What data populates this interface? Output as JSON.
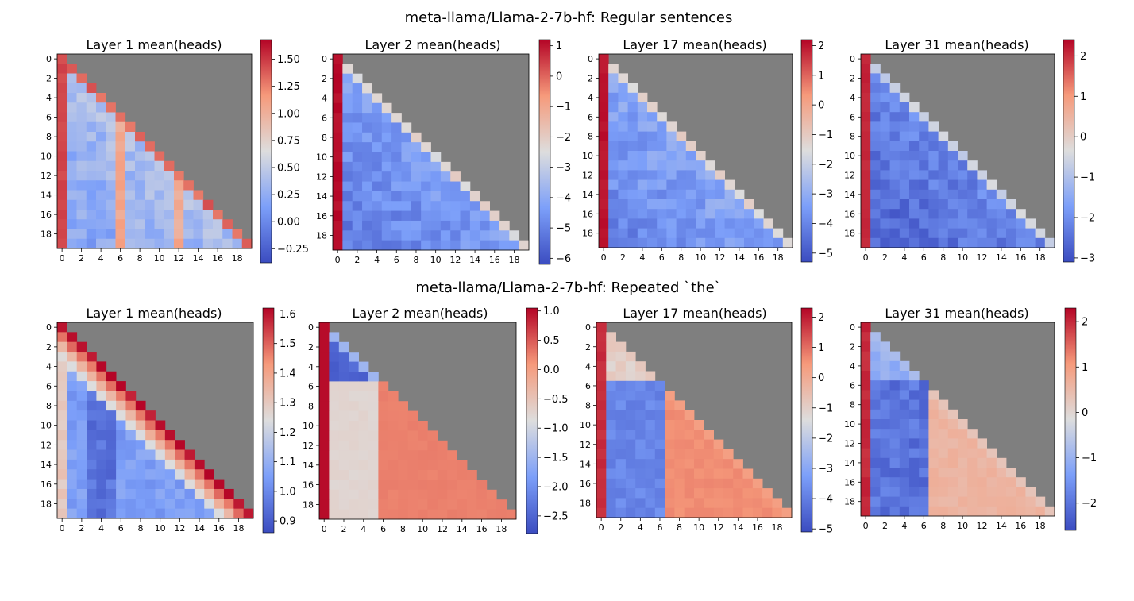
{
  "chart_data": [
    {
      "type": "heatmap",
      "group_title": "meta-llama/Llama-2-7b-hf: Regular sentences",
      "rows": 20,
      "cols": 20,
      "xticks": [
        "0",
        "2",
        "4",
        "6",
        "8",
        "10",
        "12",
        "14",
        "16",
        "18"
      ],
      "yticks": [
        "0",
        "2",
        "4",
        "6",
        "8",
        "10",
        "12",
        "14",
        "16",
        "18"
      ],
      "masked_color": "#7f7f7f",
      "colormap": "coolwarm",
      "panels": [
        {
          "title": "Layer 1 mean(heads)",
          "vmin": -0.38,
          "vmax": 1.68,
          "cbar_ticks": [
            -0.25,
            0,
            0.25,
            0.5,
            0.75,
            1.0,
            1.25,
            1.5
          ],
          "cbar_labels": [
            "−0.25",
            "0.00",
            "0.25",
            "0.50",
            "0.75",
            "1.00",
            "1.25",
            "1.50"
          ],
          "pattern": "first col strong red, diagonal red, scattered blue interior, red columns at 6 and 12",
          "first_col": 1.45,
          "diag": 1.35,
          "offdiag": 0.4,
          "stripe_cols": [
            6,
            12
          ],
          "stripe_val": 1.05
        },
        {
          "title": "Layer 2 mean(heads)",
          "vmin": -6.2,
          "vmax": 1.2,
          "cbar_ticks": [
            -6,
            -5,
            -4,
            -3,
            -2,
            -1,
            0,
            1
          ],
          "cbar_labels": [
            "−6",
            "−5",
            "−4",
            "−3",
            "−2",
            "−1",
            "0",
            "1"
          ],
          "first_col": 1.1,
          "diag": -2.3,
          "offdiag": -4.3
        },
        {
          "title": "Layer 17 mean(heads)",
          "vmin": -5.3,
          "vmax": 2.2,
          "cbar_ticks": [
            -5,
            -4,
            -3,
            -2,
            -1,
            0,
            1,
            2
          ],
          "cbar_labels": [
            "−5",
            "−4",
            "−3",
            "−2",
            "−1",
            "0",
            "1",
            "2"
          ],
          "first_col": 2.0,
          "diag": -1.3,
          "offdiag": -3.2
        },
        {
          "title": "Layer 31 mean(heads)",
          "vmin": -3.1,
          "vmax": 2.4,
          "cbar_ticks": [
            -3,
            -2,
            -1,
            0,
            1,
            2
          ],
          "cbar_labels": [
            "−3",
            "−2",
            "−1",
            "0",
            "1",
            "2"
          ],
          "first_col": 2.1,
          "diag": -0.6,
          "offdiag": -2.1
        }
      ]
    },
    {
      "type": "heatmap",
      "group_title": "meta-llama/Llama-2-7b-hf: Repeated `the`",
      "rows": 20,
      "cols": 20,
      "xticks": [
        "0",
        "2",
        "4",
        "6",
        "8",
        "10",
        "12",
        "14",
        "16",
        "18"
      ],
      "yticks": [
        "0",
        "2",
        "4",
        "6",
        "8",
        "10",
        "12",
        "14",
        "16",
        "18"
      ],
      "masked_color": "#7f7f7f",
      "colormap": "coolwarm",
      "panels": [
        {
          "title": "Layer 1 mean(heads)",
          "vmin": 0.86,
          "vmax": 1.62,
          "cbar_ticks": [
            0.9,
            1.0,
            1.1,
            1.2,
            1.3,
            1.4,
            1.5,
            1.6
          ],
          "cbar_labels": [
            "0.9",
            "1.0",
            "1.1",
            "1.2",
            "1.3",
            "1.4",
            "1.5",
            "1.6"
          ],
          "diag": 1.6,
          "offdiag": 1.05,
          "first_col": 1.3
        },
        {
          "title": "Layer 2 mean(heads)",
          "vmin": -2.8,
          "vmax": 1.05,
          "cbar_ticks": [
            -2.5,
            -2.0,
            -1.5,
            -1.0,
            -0.5,
            0.0,
            0.5,
            1.0
          ],
          "cbar_labels": [
            "−2.5",
            "−2.0",
            "−1.5",
            "−1.0",
            "−0.5",
            "0.0",
            "0.5",
            "1.0"
          ],
          "first_col": 1.0,
          "early_block": -2.5,
          "mid_cols": -0.75,
          "late_cols": 0.25
        },
        {
          "title": "Layer 17 mean(heads)",
          "vmin": -5.1,
          "vmax": 2.3,
          "cbar_ticks": [
            -5,
            -4,
            -3,
            -2,
            -1,
            0,
            1,
            2
          ],
          "cbar_labels": [
            "−5",
            "−4",
            "−3",
            "−2",
            "−1",
            "0",
            "1",
            "2"
          ],
          "first_col": 1.8,
          "block_cols": -3.8,
          "late_cols": 0.6
        },
        {
          "title": "Layer 31 mean(heads)",
          "vmin": -2.6,
          "vmax": 2.3,
          "cbar_ticks": [
            -2,
            -1,
            0,
            1,
            2
          ],
          "cbar_labels": [
            "−2",
            "−1",
            "0",
            "1",
            "2"
          ],
          "first_col": 2.0,
          "block_cols": -2.0,
          "late_cols": 0.6
        }
      ]
    }
  ]
}
